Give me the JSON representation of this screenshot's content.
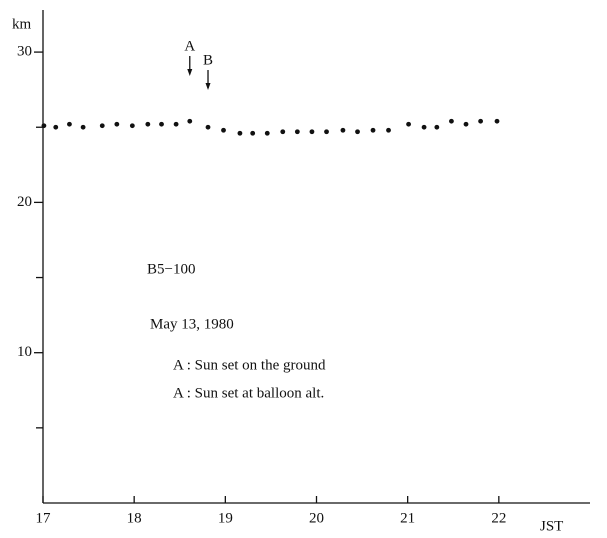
{
  "chart_data": {
    "type": "scatter",
    "y_label": "km",
    "x_label": "JST",
    "annotation_texts": [
      "B5−100",
      "May 13, 1980",
      "A : Sun set on the ground",
      "A : Sun set at balloon alt."
    ],
    "markers": [
      {
        "text": "A",
        "x": 18.61
      },
      {
        "text": "B",
        "x": 18.81
      }
    ],
    "x": [
      17.01,
      17.14,
      17.29,
      17.44,
      17.65,
      17.81,
      17.98,
      18.15,
      18.3,
      18.46,
      18.61,
      18.81,
      18.98,
      19.16,
      19.3,
      19.46,
      19.63,
      19.79,
      19.95,
      20.11,
      20.29,
      20.45,
      20.62,
      20.79,
      21.01,
      21.18,
      21.32,
      21.48,
      21.64,
      21.8,
      21.98
    ],
    "values": [
      25.1,
      25.0,
      25.2,
      25.0,
      25.1,
      25.2,
      25.1,
      25.2,
      25.2,
      25.2,
      25.4,
      25.0,
      24.8,
      24.6,
      24.6,
      24.6,
      24.7,
      24.7,
      24.7,
      24.7,
      24.8,
      24.7,
      24.8,
      24.8,
      25.2,
      25.0,
      25.0,
      25.4,
      25.2,
      25.4,
      25.4
    ],
    "color": "#111111",
    "xlim": [
      17,
      23
    ],
    "xticks": [
      17,
      18,
      19,
      20,
      21,
      22
    ],
    "ylim": [
      0,
      32.8
    ],
    "yticks": [
      10,
      20,
      30
    ],
    "yticks_minor": [
      5,
      15,
      25
    ]
  }
}
